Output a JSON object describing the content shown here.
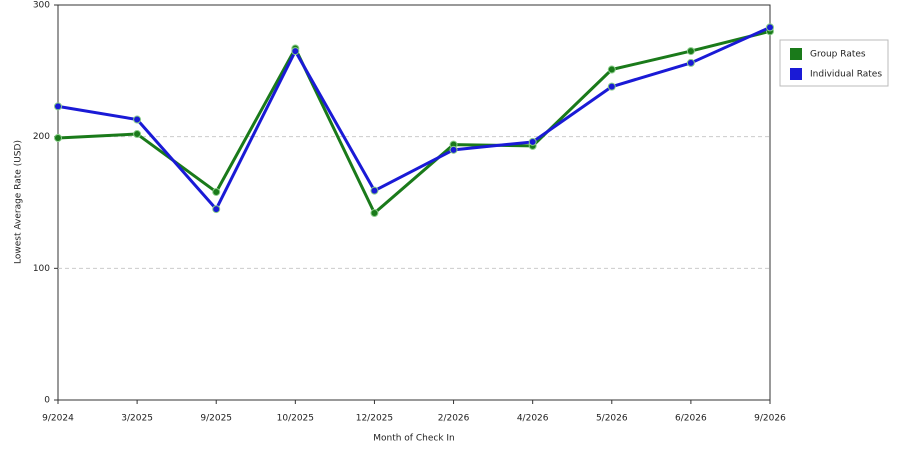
{
  "chart_data": {
    "type": "line",
    "x_label": "Month of Check In",
    "y_label": "Lowest Average Rate (USD)",
    "categories": [
      "9/2024",
      "3/2025",
      "9/2025",
      "10/2025",
      "12/2025",
      "2/2026",
      "4/2026",
      "5/2026",
      "6/2026",
      "9/2026"
    ],
    "series": [
      {
        "name": "Group Rates",
        "color": "#1a7a1a",
        "values": [
          199,
          202,
          158,
          267,
          142,
          194,
          193,
          251,
          265,
          280
        ]
      },
      {
        "name": "Individual Rates",
        "color": "#1a1ad6",
        "values": [
          223,
          213,
          145,
          265,
          159,
          190,
          196,
          238,
          256,
          283
        ]
      }
    ],
    "ylim": [
      0,
      300
    ],
    "yticks": [
      0,
      100,
      200,
      300
    ],
    "grid": true,
    "legend": "right"
  }
}
